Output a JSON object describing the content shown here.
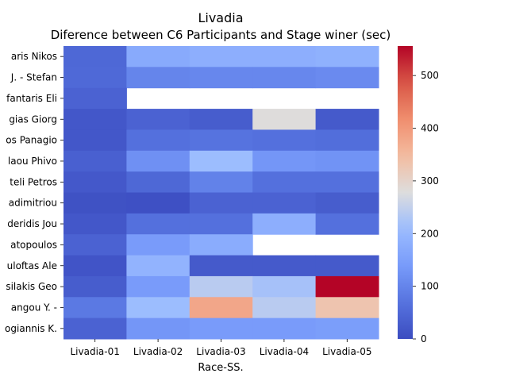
{
  "chart_data": {
    "type": "heatmap",
    "title": "Livadia",
    "subtitle": "Diference between C6 Participants and Stage winer (sec)",
    "xlabel": "Race-SS.",
    "ylabel": "",
    "colormap": "coolwarm",
    "vmin": 0,
    "vmax": 556,
    "colorbar_ticks": [
      0,
      100,
      200,
      300,
      400,
      500
    ],
    "x": [
      "Livadia-01",
      "Livadia-02",
      "Livadia-03",
      "Livadia-04",
      "Livadia-05"
    ],
    "y": [
      "aris Nikos ",
      "J.  - Stefan",
      "fantaris Eli",
      "gias Giorg",
      "os Panagio",
      "laou Phivo",
      "teli Petros",
      "adimitriou ",
      "deridis Jou",
      "atopoulos ",
      "uloftas Ale",
      "silakis Geo",
      "angou Y.  - ",
      "ogiannis K."
    ],
    "values": [
      [
        50,
        170,
        180,
        180,
        185
      ],
      [
        52,
        100,
        105,
        105,
        110
      ],
      [
        40,
        null,
        null,
        null,
        null
      ],
      [
        20,
        40,
        30,
        280,
        25
      ],
      [
        20,
        65,
        70,
        65,
        60
      ],
      [
        35,
        120,
        210,
        130,
        125
      ],
      [
        22,
        50,
        95,
        65,
        65
      ],
      [
        10,
        8,
        40,
        40,
        30
      ],
      [
        20,
        65,
        65,
        180,
        65
      ],
      [
        40,
        140,
        175,
        null,
        null
      ],
      [
        15,
        190,
        25,
        25,
        25
      ],
      [
        30,
        140,
        240,
        220,
        556
      ],
      [
        80,
        210,
        380,
        240,
        330
      ],
      [
        40,
        130,
        140,
        140,
        145
      ]
    ]
  }
}
